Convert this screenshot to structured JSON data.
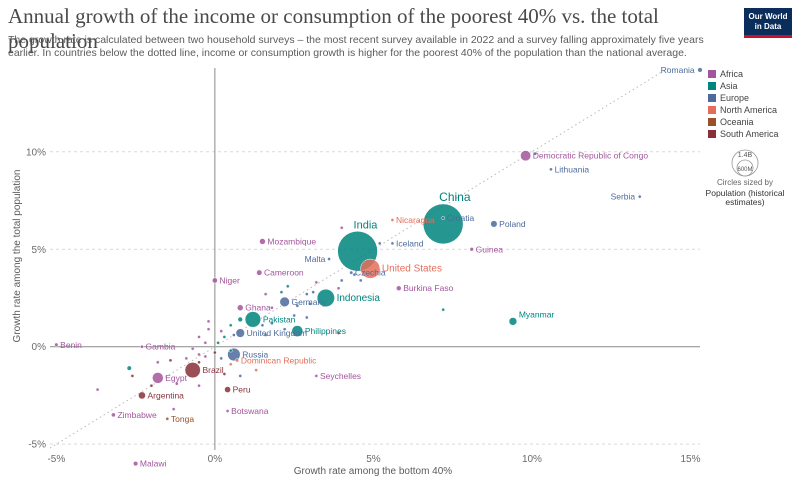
{
  "header": {
    "title": "Annual growth of the income or consumption of the poorest 40% vs. the total population",
    "subtitle": "The growth rate is calculated between two household surveys – the most recent survey available in 2022 and a survey falling approximately five years earlier. In countries below the dotted line, income or consumption growth is higher for the poorest 40% of the population than the national average.",
    "logo_line1": "Our World",
    "logo_line2": "in Data"
  },
  "size_legend": {
    "big_label": "1.4B",
    "small_label": "600M",
    "caption": "Circles sized by",
    "variable": "Population (historical estimates)"
  },
  "chart_data": {
    "type": "scatter",
    "title": "Annual growth of the income or consumption of the poorest 40% vs. the total population",
    "xlabel": "Growth rate among the bottom 40%",
    "ylabel": "Growth rate among the total population",
    "xlim": [
      -5.2,
      15.3
    ],
    "ylim": [
      -5.3,
      14.3
    ],
    "xticks": [
      -5,
      0,
      5,
      10,
      15
    ],
    "xtick_labels": [
      "-5%",
      "0%",
      "5%",
      "10%",
      "15%"
    ],
    "yticks": [
      -5,
      0,
      5,
      10
    ],
    "ytick_labels": [
      "-5%",
      "0%",
      "5%",
      "10%"
    ],
    "grid": "horizontal dotted",
    "reference_line": "y = x (dotted)",
    "legend_position": "right",
    "colors": {
      "Africa": "#a2559c",
      "Asia": "#00847e",
      "Europe": "#4c6a9c",
      "North America": "#e56e5a",
      "Oceania": "#9a5129",
      "South America": "#883039"
    },
    "legend": [
      "Africa",
      "Asia",
      "Europe",
      "North America",
      "Oceania",
      "South America"
    ],
    "points": [
      {
        "label": "Romania",
        "x": 15.3,
        "y": 14.2,
        "region": "Europe",
        "pop": 19
      },
      {
        "label": "Democratic Republic of Congo",
        "x": 9.8,
        "y": 9.8,
        "region": "Africa",
        "pop": 95
      },
      {
        "label": "Lithuania",
        "x": 10.6,
        "y": 9.1,
        "region": "Europe",
        "pop": 2.8
      },
      {
        "label": "Serbia",
        "x": 13.4,
        "y": 7.7,
        "region": "Europe",
        "pop": 6.8
      },
      {
        "label": "China",
        "x": 7.2,
        "y": 6.3,
        "region": "Asia",
        "pop": 1410
      },
      {
        "label": "Croatia",
        "x": 7.2,
        "y": 6.6,
        "region": "Europe",
        "pop": 4
      },
      {
        "label": "Poland",
        "x": 8.8,
        "y": 6.3,
        "region": "Europe",
        "pop": 38
      },
      {
        "label": "Nicaragua",
        "x": 5.6,
        "y": 6.5,
        "region": "North America",
        "pop": 6.6
      },
      {
        "label": "Guinea",
        "x": 8.1,
        "y": 5.0,
        "region": "Africa",
        "pop": 13
      },
      {
        "label": "Iceland",
        "x": 5.6,
        "y": 5.3,
        "region": "Europe",
        "pop": 0.4
      },
      {
        "label": "India",
        "x": 4.5,
        "y": 4.9,
        "region": "Asia",
        "pop": 1400
      },
      {
        "label": "United States",
        "x": 4.9,
        "y": 4.0,
        "region": "North America",
        "pop": 330
      },
      {
        "label": "Mozambique",
        "x": 1.5,
        "y": 5.4,
        "region": "Africa",
        "pop": 31
      },
      {
        "label": "Malta",
        "x": 3.6,
        "y": 4.5,
        "region": "Europe",
        "pop": 0.5
      },
      {
        "label": "Czechia",
        "x": 4.3,
        "y": 3.8,
        "region": "Europe",
        "pop": 10.5
      },
      {
        "label": "Cameroon",
        "x": 1.4,
        "y": 3.8,
        "region": "Africa",
        "pop": 26
      },
      {
        "label": "Niger",
        "x": 0.0,
        "y": 3.4,
        "region": "Africa",
        "pop": 24
      },
      {
        "label": "Burkina Faso",
        "x": 5.8,
        "y": 3.0,
        "region": "Africa",
        "pop": 21
      },
      {
        "label": "Indonesia",
        "x": 3.5,
        "y": 2.5,
        "region": "Asia",
        "pop": 270
      },
      {
        "label": "Germany",
        "x": 2.2,
        "y": 2.3,
        "region": "Europe",
        "pop": 83
      },
      {
        "label": "Ghana",
        "x": 0.8,
        "y": 2.0,
        "region": "Africa",
        "pop": 31
      },
      {
        "label": "Pakistan",
        "x": 1.2,
        "y": 1.4,
        "region": "Asia",
        "pop": 220
      },
      {
        "label": "Myanmar",
        "x": 9.4,
        "y": 1.3,
        "region": "Asia",
        "pop": 54
      },
      {
        "label": "United Kingdom",
        "x": 0.8,
        "y": 0.7,
        "region": "Europe",
        "pop": 67
      },
      {
        "label": "Philippines",
        "x": 2.6,
        "y": 0.8,
        "region": "Asia",
        "pop": 110
      },
      {
        "label": "Benin",
        "x": -5.0,
        "y": 0.1,
        "region": "Africa",
        "pop": 12
      },
      {
        "label": "Gambia",
        "x": -2.3,
        "y": 0.0,
        "region": "Africa",
        "pop": 2.4
      },
      {
        "label": "Russia",
        "x": 0.6,
        "y": -0.4,
        "region": "Europe",
        "pop": 144
      },
      {
        "label": "Brazil",
        "x": -0.7,
        "y": -1.2,
        "region": "South America",
        "pop": 212
      },
      {
        "label": "Egypt",
        "x": -1.8,
        "y": -1.6,
        "region": "Africa",
        "pop": 105
      },
      {
        "label": "Dominican Republic",
        "x": 0.7,
        "y": -0.7,
        "region": "North America",
        "pop": 11
      },
      {
        "label": "Seychelles",
        "x": 3.2,
        "y": -1.5,
        "region": "Africa",
        "pop": 0.1
      },
      {
        "label": "Peru",
        "x": 0.4,
        "y": -2.2,
        "region": "South America",
        "pop": 33
      },
      {
        "label": "Argentina",
        "x": -2.3,
        "y": -2.5,
        "region": "South America",
        "pop": 45
      },
      {
        "label": "Zimbabwe",
        "x": -3.2,
        "y": -3.5,
        "region": "Africa",
        "pop": 15
      },
      {
        "label": "Tonga",
        "x": -1.5,
        "y": -3.7,
        "region": "Oceania",
        "pop": 0.1
      },
      {
        "label": "Botswana",
        "x": 0.4,
        "y": -3.3,
        "region": "Africa",
        "pop": 2.4
      },
      {
        "label": "Malawi",
        "x": -2.5,
        "y": -6.0,
        "region": "Africa",
        "pop": 19
      },
      {
        "label": "",
        "x": 10.1,
        "y": 9.9,
        "region": "Europe",
        "pop": 2
      },
      {
        "label": "",
        "x": 4.0,
        "y": 6.1,
        "region": "Africa",
        "pop": 6
      },
      {
        "label": "",
        "x": 5.2,
        "y": 5.3,
        "region": "Europe",
        "pop": 2
      },
      {
        "label": "",
        "x": 4.4,
        "y": 3.7,
        "region": "Europe",
        "pop": 3
      },
      {
        "label": "",
        "x": 4.0,
        "y": 3.4,
        "region": "Europe",
        "pop": 2
      },
      {
        "label": "",
        "x": 3.2,
        "y": 3.3,
        "region": "Africa",
        "pop": 2
      },
      {
        "label": "",
        "x": 3.9,
        "y": 3.0,
        "region": "Africa",
        "pop": 2
      },
      {
        "label": "",
        "x": 4.6,
        "y": 3.4,
        "region": "Europe",
        "pop": 2
      },
      {
        "label": "",
        "x": 7.2,
        "y": 1.9,
        "region": "Asia",
        "pop": 2
      },
      {
        "label": "",
        "x": 2.3,
        "y": 3.1,
        "region": "Asia",
        "pop": 3
      },
      {
        "label": "",
        "x": 2.1,
        "y": 2.8,
        "region": "Asia",
        "pop": 2
      },
      {
        "label": "",
        "x": 3.1,
        "y": 2.8,
        "region": "Europe",
        "pop": 2
      },
      {
        "label": "",
        "x": 2.9,
        "y": 2.7,
        "region": "Europe",
        "pop": 2
      },
      {
        "label": "",
        "x": 1.6,
        "y": 2.7,
        "region": "Africa",
        "pop": 2
      },
      {
        "label": "",
        "x": 3.0,
        "y": 2.2,
        "region": "Europe",
        "pop": 4
      },
      {
        "label": "",
        "x": 2.6,
        "y": 2.1,
        "region": "Europe",
        "pop": 4
      },
      {
        "label": "",
        "x": 1.8,
        "y": 2.0,
        "region": "Africa",
        "pop": 3
      },
      {
        "label": "",
        "x": 2.5,
        "y": 1.6,
        "region": "Europe",
        "pop": 2
      },
      {
        "label": "",
        "x": 2.9,
        "y": 1.5,
        "region": "Europe",
        "pop": 2
      },
      {
        "label": "",
        "x": 1.8,
        "y": 1.2,
        "region": "Europe",
        "pop": 2
      },
      {
        "label": "",
        "x": 1.5,
        "y": 1.1,
        "region": "Europe",
        "pop": 2
      },
      {
        "label": "",
        "x": 2.2,
        "y": 0.9,
        "region": "Europe",
        "pop": 2
      },
      {
        "label": "",
        "x": 3.9,
        "y": 0.7,
        "region": "South America",
        "pop": 2
      },
      {
        "label": "",
        "x": 1.6,
        "y": 0.6,
        "region": "Europe",
        "pop": 2
      },
      {
        "label": "",
        "x": 0.8,
        "y": 1.4,
        "region": "Asia",
        "pop": 20
      },
      {
        "label": "",
        "x": 0.5,
        "y": 1.1,
        "region": "Asia",
        "pop": 8
      },
      {
        "label": "",
        "x": -0.2,
        "y": 1.3,
        "region": "Africa",
        "pop": 8
      },
      {
        "label": "",
        "x": -0.2,
        "y": 0.9,
        "region": "Africa",
        "pop": 8
      },
      {
        "label": "",
        "x": 0.2,
        "y": 0.8,
        "region": "Africa",
        "pop": 2
      },
      {
        "label": "",
        "x": -0.5,
        "y": 0.5,
        "region": "Africa",
        "pop": 2
      },
      {
        "label": "",
        "x": 0.3,
        "y": 0.5,
        "region": "Asia",
        "pop": 2
      },
      {
        "label": "",
        "x": 0.6,
        "y": 0.6,
        "region": "Europe",
        "pop": 2
      },
      {
        "label": "",
        "x": -0.3,
        "y": 0.2,
        "region": "Africa",
        "pop": 2
      },
      {
        "label": "",
        "x": 0.1,
        "y": 0.2,
        "region": "Asia",
        "pop": 2
      },
      {
        "label": "",
        "x": -0.7,
        "y": -0.1,
        "region": "Africa",
        "pop": 2
      },
      {
        "label": "",
        "x": -0.5,
        "y": -0.4,
        "region": "Africa",
        "pop": 2
      },
      {
        "label": "",
        "x": -0.3,
        "y": -0.5,
        "region": "Africa",
        "pop": 2
      },
      {
        "label": "",
        "x": 0.0,
        "y": -0.3,
        "region": "South America",
        "pop": 2
      },
      {
        "label": "",
        "x": 0.2,
        "y": -0.6,
        "region": "Europe",
        "pop": 8
      },
      {
        "label": "",
        "x": 0.5,
        "y": -0.2,
        "region": "Asia",
        "pop": 2
      },
      {
        "label": "",
        "x": 0.5,
        "y": -0.9,
        "region": "North America",
        "pop": 2
      },
      {
        "label": "",
        "x": -0.5,
        "y": -0.8,
        "region": "South America",
        "pop": 2
      },
      {
        "label": "",
        "x": -0.9,
        "y": -0.6,
        "region": "Africa",
        "pop": 2
      },
      {
        "label": "",
        "x": -1.8,
        "y": -0.8,
        "region": "Africa",
        "pop": 2
      },
      {
        "label": "",
        "x": -1.4,
        "y": -0.7,
        "region": "South America",
        "pop": 2
      },
      {
        "label": "",
        "x": -2.6,
        "y": -1.5,
        "region": "South America",
        "pop": 8
      },
      {
        "label": "",
        "x": -2.0,
        "y": -2.0,
        "region": "South America",
        "pop": 2
      },
      {
        "label": "",
        "x": -1.2,
        "y": -1.9,
        "region": "Africa",
        "pop": 2
      },
      {
        "label": "",
        "x": -2.7,
        "y": -1.1,
        "region": "Asia",
        "pop": 18
      },
      {
        "label": "",
        "x": -3.7,
        "y": -2.2,
        "region": "Africa",
        "pop": 2
      },
      {
        "label": "",
        "x": -1.3,
        "y": -3.2,
        "region": "Africa",
        "pop": 2
      },
      {
        "label": "",
        "x": 0.8,
        "y": -1.5,
        "region": "Europe",
        "pop": 2
      },
      {
        "label": "",
        "x": 1.3,
        "y": -1.2,
        "region": "North America",
        "pop": 2
      },
      {
        "label": "",
        "x": 0.3,
        "y": -1.4,
        "region": "South America",
        "pop": 2
      },
      {
        "label": "",
        "x": -0.5,
        "y": -2.0,
        "region": "Africa",
        "pop": 2
      }
    ]
  }
}
